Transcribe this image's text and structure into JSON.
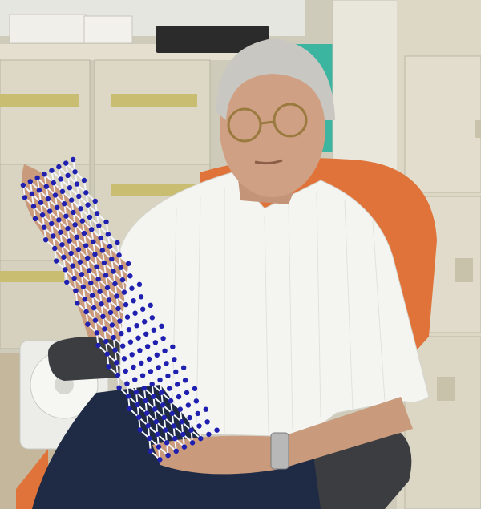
{
  "photo": {
    "subject": "person",
    "held_object": "molecular-model",
    "model_bead_color": "#1f1fb0",
    "model_link_color": "#f4f6fb"
  },
  "palette": {
    "wall": "#cfcbbb",
    "cabinet": "#ddd8c6",
    "cabinet_shadow": "#bdb8a6",
    "handle": "#c9bd72",
    "floor": "#c4b79c",
    "chair_mesh": "#e0733a",
    "chair_frame": "#3b3d40",
    "shirt": "#f4f4f1",
    "trousers": "#1f2a44",
    "skin": "#c99a7c",
    "hair": "#c9c7c2",
    "fan": "#ecece8",
    "monitor": "#2b2b2b"
  }
}
